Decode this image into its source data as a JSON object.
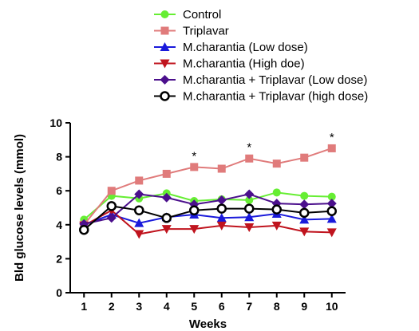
{
  "chart_data": {
    "type": "line",
    "xlabel": "Weeks",
    "ylabel": "Bld glucose levels (mmol)",
    "x": [
      1,
      2,
      3,
      4,
      5,
      6,
      7,
      8,
      9,
      10
    ],
    "xlim": [
      0.5,
      10.5
    ],
    "ylim": [
      0,
      10
    ],
    "yticks": [
      0,
      2,
      4,
      6,
      8,
      10
    ],
    "grid": false,
    "legend_position": "top",
    "series": [
      {
        "name": "Control",
        "color": "#66ee33",
        "marker": "circle",
        "values": [
          4.3,
          5.7,
          5.55,
          5.85,
          5.4,
          5.5,
          5.45,
          5.9,
          5.7,
          5.65
        ]
      },
      {
        "name": "Triplavar",
        "color": "#e07b7b",
        "marker": "square",
        "values": [
          4.0,
          6.0,
          6.6,
          7.0,
          7.4,
          7.3,
          7.9,
          7.6,
          7.95,
          8.5
        ]
      },
      {
        "name": "M.charantia (Low dose)",
        "color": "#1a1adb",
        "marker": "triangle-up",
        "values": [
          4.0,
          4.6,
          4.1,
          4.45,
          4.6,
          4.4,
          4.45,
          4.65,
          4.3,
          4.35
        ]
      },
      {
        "name": "M.charantia (High doe)",
        "color": "#c0141e",
        "marker": "triangle-down",
        "values": [
          3.95,
          4.85,
          3.45,
          3.75,
          3.75,
          3.95,
          3.85,
          3.95,
          3.6,
          3.55
        ]
      },
      {
        "name": "M.charantia + Triplavar (Low dose)",
        "color": "#4b0f8c",
        "marker": "diamond",
        "values": [
          4.05,
          4.4,
          5.8,
          5.6,
          5.2,
          5.45,
          5.8,
          5.25,
          5.2,
          5.25
        ]
      },
      {
        "name": "M.charantia + Triplavar (high dose)",
        "color": "#000000",
        "marker": "open-circle",
        "values": [
          3.7,
          5.1,
          4.85,
          4.4,
          4.85,
          4.95,
          4.95,
          4.9,
          4.7,
          4.8
        ]
      }
    ],
    "annotations": [
      {
        "text": "*",
        "x": 5,
        "y": 8.2
      },
      {
        "text": "*",
        "x": 7,
        "y": 8.7
      },
      {
        "text": "*",
        "x": 10,
        "y": 9.3
      }
    ]
  }
}
